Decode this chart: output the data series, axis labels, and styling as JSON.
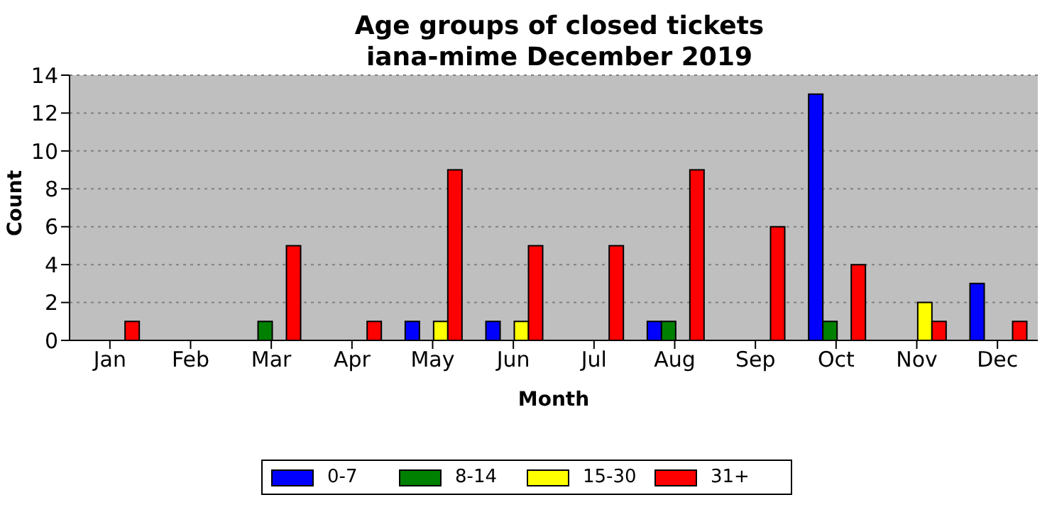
{
  "chart_data": {
    "type": "bar",
    "title": "Age groups of closed tickets\niana-mime December 2019",
    "xlabel": "Month",
    "ylabel": "Count",
    "categories": [
      "Jan",
      "Feb",
      "Mar",
      "Apr",
      "May",
      "Jun",
      "Jul",
      "Aug",
      "Sep",
      "Oct",
      "Nov",
      "Dec"
    ],
    "series": [
      {
        "name": "0-7",
        "color": "#0000ff",
        "values": [
          0,
          0,
          0,
          0,
          1,
          1,
          0,
          1,
          0,
          13,
          0,
          3
        ]
      },
      {
        "name": "8-14",
        "color": "#008000",
        "values": [
          0,
          0,
          1,
          0,
          0,
          0,
          0,
          1,
          0,
          1,
          0,
          0
        ]
      },
      {
        "name": "15-30",
        "color": "#ffff00",
        "values": [
          0,
          0,
          0,
          0,
          1,
          1,
          0,
          0,
          0,
          0,
          2,
          0
        ]
      },
      {
        "name": "31+",
        "color": "#ff0000",
        "values": [
          1,
          0,
          5,
          1,
          9,
          5,
          5,
          9,
          6,
          4,
          1,
          1
        ]
      }
    ],
    "ylim": [
      0,
      14
    ],
    "yticks": [
      0,
      2,
      4,
      6,
      8,
      10,
      12,
      14
    ],
    "grid": "y",
    "legend": "bottom"
  }
}
